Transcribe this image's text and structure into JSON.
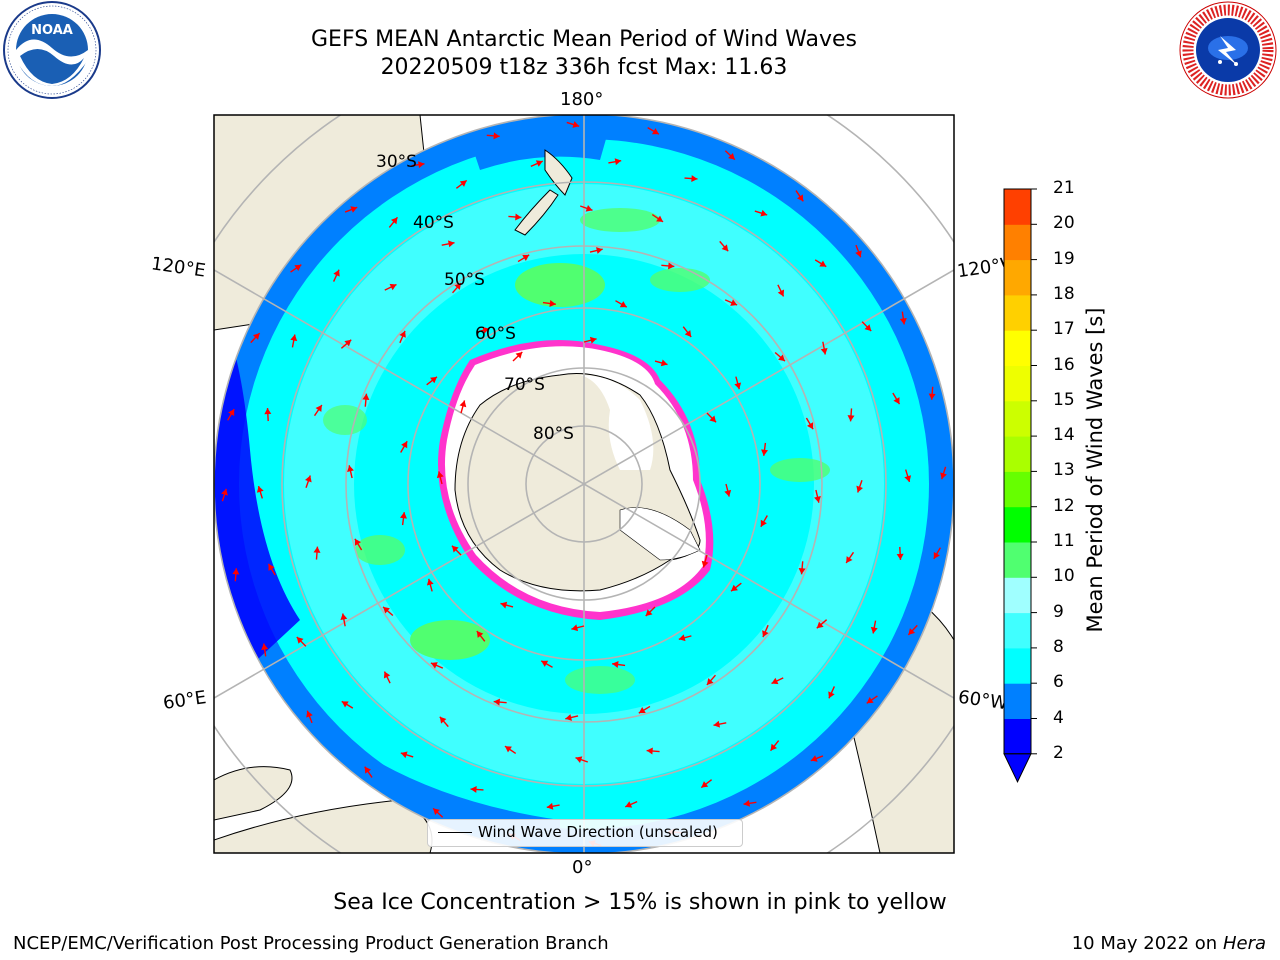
{
  "title": {
    "line1": "GEFS MEAN Antarctic Mean Period of Wind Waves",
    "line2": "20220509 t18z 336h fcst   Max: 11.63"
  },
  "logos": {
    "left": {
      "name": "NOAA",
      "ring_text": "NATIONAL OCEANIC AND ATMOSPHERIC ADMINISTRATION · U.S. DEPARTMENT OF COMMERCE",
      "emblem_text": "NOAA"
    },
    "right": {
      "name": "National Weather Service",
      "ring_text": "NATIONAL WEATHER SERVICE"
    }
  },
  "map": {
    "projection": "south-polar-stereographic",
    "longitude_labels": {
      "top": "180°",
      "bottom": "0°",
      "upper_left": "120°E",
      "upper_right": "120°W",
      "lower_left": "60°E",
      "lower_right": "60°W"
    },
    "latitude_labels": [
      "30°S",
      "40°S",
      "50°S",
      "60°S",
      "70°S",
      "80°S"
    ],
    "legend_label": "Wind Wave Direction (unscaled)",
    "arrow_color": "#ff0000",
    "land_color": "#efebdb",
    "sea_ice_edge_color": "#ff33cc"
  },
  "colorbar": {
    "label": "Mean Period of Wind Waves [s]",
    "ticks": [
      "2",
      "4",
      "6",
      "8",
      "9",
      "10",
      "11",
      "12",
      "13",
      "14",
      "15",
      "16",
      "17",
      "18",
      "19",
      "20",
      "21"
    ],
    "colors": [
      "#0000ff",
      "#0080ff",
      "#00ffff",
      "#40ffff",
      "#a0ffff",
      "#50ff70",
      "#00ff00",
      "#66ff00",
      "#aaff00",
      "#ccff00",
      "#eeff00",
      "#ffff00",
      "#ffd000",
      "#ffa800",
      "#ff8000",
      "#ff4000",
      "#ff0000"
    ],
    "extend_color": "#0000ff"
  },
  "caption": "Sea Ice Concentration > 15% is shown in pink to yellow",
  "footer": {
    "left": "NCEP/EMC/Verification Post Processing Product Generation Branch",
    "right_date": "10 May 2022 on",
    "right_machine": "Hera"
  }
}
